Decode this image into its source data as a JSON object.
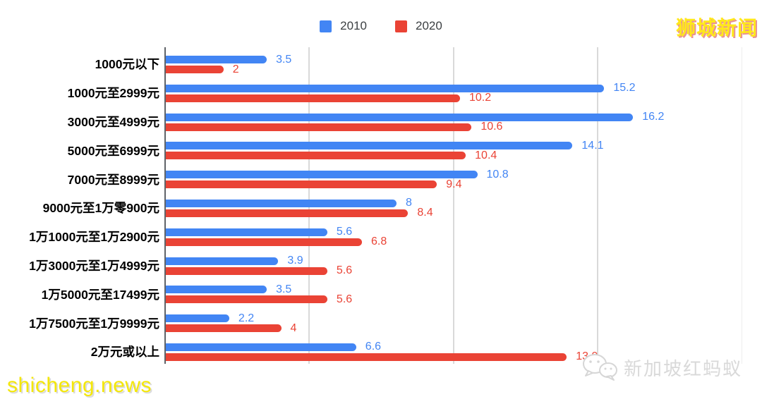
{
  "brand": {
    "text": "狮城新闻"
  },
  "footer": {
    "site_url": "shicheng.news",
    "watermark": "新加坡红蚂蚁",
    "watermark_icon": "wechat-icon"
  },
  "legend": {
    "position": "top-center"
  },
  "chart_data": {
    "type": "bar",
    "orientation": "horizontal",
    "title": "",
    "xlabel": "",
    "ylabel": "",
    "xlim": [
      0,
      20.7
    ],
    "gridlines": [
      5,
      10,
      15,
      20
    ],
    "grid": true,
    "legend_position": "top",
    "value_labels": true,
    "categories": [
      "1000元以下",
      "1000元至2999元",
      "3000元至4999元",
      "5000元至6999元",
      "7000元至8999元",
      "9000元至1万零900元",
      "1万1000元至1万2900元",
      "1万3000元至1万4999元",
      "1万5000元至17499元",
      "1万7500元至1万9999元",
      "2万元或以上"
    ],
    "series": [
      {
        "name": "2010",
        "color": "#4285f4",
        "values": [
          3.5,
          15.2,
          16.2,
          14.1,
          10.8,
          8,
          5.6,
          3.9,
          3.5,
          2.2,
          6.6
        ]
      },
      {
        "name": "2020",
        "color": "#ea4335",
        "values": [
          2,
          10.2,
          10.6,
          10.4,
          9.4,
          8.4,
          6.8,
          5.6,
          5.6,
          4,
          13.9
        ]
      }
    ]
  },
  "colors": {
    "axis": "#5f6368",
    "gridline": "#d9d9d9",
    "brand_text": "#ffe81a",
    "site_url_text": "#f4e70a",
    "watermark_text": "#d9d9d9",
    "category_label": "#000000",
    "legend_label": "#3c4043"
  }
}
